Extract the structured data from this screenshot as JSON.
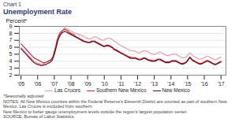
{
  "chart_data": {
    "type": "line",
    "title": "Chart 1",
    "subtitle": "Unemployment Rate",
    "ylabel": "Percent*",
    "annotations": [
      "*Seasonally adjusted",
      "NOTES: All New Mexico counties within the Federal Reserve's Eleventh District are counted as part of southern New Mexico. Las Cruces is excluded from southern",
      "New Mexico to better gauge unemployment levels outside the region's largest population center.",
      "SOURCE: Bureau of Labor Statistics."
    ],
    "xlim": [
      2004.9,
      2017.3
    ],
    "xticks": [
      {
        "value": 2005,
        "label": "'05"
      },
      {
        "value": 2006,
        "label": "'06"
      },
      {
        "value": 2007,
        "label": "'07"
      },
      {
        "value": 2008,
        "label": "'08"
      },
      {
        "value": 2009,
        "label": "'09"
      },
      {
        "value": 2010,
        "label": "'10"
      },
      {
        "value": 2011,
        "label": "'11"
      },
      {
        "value": 2012,
        "label": "'12"
      },
      {
        "value": 2013,
        "label": "'13"
      },
      {
        "value": 2014,
        "label": "'14"
      },
      {
        "value": 2015,
        "label": "'15"
      },
      {
        "value": 2016,
        "label": "'16"
      },
      {
        "value": 2017,
        "label": "'17"
      }
    ],
    "ylim": [
      2,
      9
    ],
    "yticks": [
      2,
      3,
      4,
      5,
      6,
      7,
      8,
      9
    ],
    "grid": true,
    "legend": "bottom",
    "x": [
      2005,
      2005.0774,
      2005.1548,
      2005.2323,
      2005.3097,
      2005.3871,
      2005.4645,
      2005.5419,
      2005.6194,
      2005.6968,
      2005.7742,
      2005.8516,
      2005.929,
      2006.0065,
      2006.0839,
      2006.1613,
      2006.2387,
      2006.3161,
      2006.3935,
      2006.471,
      2006.5484,
      2006.6258,
      2006.7032,
      2006.7806,
      2006.8581,
      2006.9355,
      2007.0129,
      2007.0903,
      2007.1677,
      2007.2452,
      2007.3226,
      2007.4,
      2007.4774,
      2007.5548,
      2007.6323,
      2007.7097,
      2007.7871,
      2007.8645,
      2007.9419,
      2008.0194,
      2008.0968,
      2008.1742,
      2008.2516,
      2008.329,
      2008.4065,
      2008.4839,
      2008.5613,
      2008.6387,
      2008.7161,
      2008.7935,
      2008.871,
      2008.9484,
      2009.0258,
      2009.1032,
      2009.1806,
      2009.2581,
      2009.3355,
      2009.4129,
      2009.4903,
      2009.5677,
      2009.6452,
      2009.7226,
      2009.8,
      2009.8774,
      2009.9548,
      2010.0323,
      2010.1097,
      2010.1871,
      2010.2645,
      2010.3419,
      2010.4194,
      2010.4968,
      2010.5742,
      2010.6516,
      2010.729,
      2010.8065,
      2010.8839,
      2010.9613,
      2011.0387,
      2011.1161,
      2011.1935,
      2011.271,
      2011.3484,
      2011.4258,
      2011.5032,
      2011.5806,
      2011.6581,
      2011.7355,
      2011.8129,
      2011.8903,
      2011.9677,
      2012.0452,
      2012.1226,
      2012.2,
      2012.2774,
      2012.3548,
      2012.4323,
      2012.5097,
      2012.5871,
      2012.6645,
      2012.7419,
      2012.8194,
      2012.8968,
      2012.9742,
      2013.0516,
      2013.129,
      2013.2065,
      2013.2839,
      2013.3613,
      2013.4387,
      2013.5161,
      2013.5935,
      2013.671,
      2013.7484,
      2013.8258,
      2013.9032,
      2013.9806,
      2014.0581,
      2014.1355,
      2014.2129,
      2014.2903,
      2014.3677,
      2014.4452,
      2014.5226,
      2014.6,
      2014.6774,
      2014.7548,
      2014.8323,
      2014.9097,
      2014.9871,
      2015.0645,
      2015.1419,
      2015.2194,
      2015.2968,
      2015.3742,
      2015.4516,
      2015.529,
      2015.6065,
      2015.6839,
      2015.7613,
      2015.8387,
      2015.9161,
      2015.9935,
      2016.071,
      2016.1484,
      2016.2258,
      2016.3032,
      2016.3806,
      2016.4581,
      2016.5355,
      2016.6129,
      2016.6903,
      2016.7677,
      2016.8452,
      2016.9226,
      2017
    ],
    "series": [
      {
        "name": "Las Cruces",
        "color": "#dba0aa",
        "values": [
          6.0,
          5.8,
          5.6,
          5.4,
          5.2,
          5.0,
          4.8,
          4.6,
          4.4,
          4.2,
          4.0,
          3.9,
          3.8,
          3.7,
          3.7,
          3.6,
          3.6,
          3.6,
          3.7,
          3.8,
          3.9,
          3.9,
          4.0,
          4.1,
          4.3,
          4.6,
          5.2,
          5.8,
          6.5,
          7.2,
          7.7,
          8.0,
          8.3,
          8.6,
          8.8,
          8.7,
          8.6,
          8.5,
          8.4,
          8.3,
          8.2,
          8.1,
          8.0,
          8.0,
          7.9,
          7.8,
          7.8,
          7.7,
          7.6,
          7.5,
          7.4,
          7.3,
          7.3,
          7.2,
          7.2,
          7.3,
          7.4,
          7.5,
          7.5,
          7.4,
          7.3,
          7.2,
          7.1,
          7.0,
          7.0,
          7.1,
          7.2,
          7.3,
          7.3,
          7.3,
          7.2,
          7.1,
          6.9,
          6.8,
          6.7,
          6.5,
          6.4,
          6.3,
          6.2,
          6.1,
          6.0,
          5.9,
          5.8,
          5.7,
          5.6,
          5.5,
          5.5,
          5.5,
          5.5,
          5.4,
          5.3,
          5.2,
          5.2,
          5.3,
          5.4,
          5.5,
          5.5,
          5.5,
          5.4,
          5.3,
          5.2,
          5.1,
          5.0,
          5.0,
          5.0,
          5.1,
          5.2,
          5.3,
          5.3,
          5.2,
          5.1,
          5.0,
          4.9,
          4.8,
          4.8,
          4.8,
          4.9,
          5.0,
          5.0,
          5.0,
          5.0,
          4.9,
          4.8,
          4.7,
          4.6,
          4.5,
          4.5,
          4.5,
          4.6,
          4.8,
          5.0,
          5.2,
          5.0,
          4.8,
          4.7,
          4.6,
          4.5,
          4.4,
          4.3,
          4.3,
          4.3,
          4.4,
          4.5,
          4.6,
          4.7,
          4.7,
          4.6,
          4.5,
          4.4,
          4.3,
          4.2,
          4.2,
          4.3,
          4.4,
          4.5,
          4.6
        ]
      },
      {
        "name": "Southern New Mexico",
        "color": "#b83040",
        "values": [
          6.5,
          6.3,
          6.1,
          5.9,
          5.7,
          5.5,
          5.3,
          5.1,
          4.9,
          4.7,
          4.5,
          4.4,
          4.3,
          4.2,
          4.1,
          4.0,
          3.9,
          3.8,
          3.8,
          3.8,
          3.9,
          4.0,
          4.1,
          4.2,
          4.4,
          4.8,
          5.5,
          6.2,
          7.0,
          7.6,
          8.0,
          8.2,
          8.4,
          8.5,
          8.6,
          8.5,
          8.4,
          8.2,
          8.1,
          8.0,
          7.9,
          7.8,
          7.6,
          7.5,
          7.4,
          7.3,
          7.2,
          7.1,
          7.0,
          6.9,
          6.8,
          6.8,
          6.7,
          6.7,
          6.8,
          6.9,
          6.9,
          6.9,
          6.8,
          6.7,
          6.6,
          6.5,
          6.4,
          6.3,
          6.2,
          6.2,
          6.3,
          6.3,
          6.3,
          6.2,
          6.1,
          6.0,
          5.8,
          5.7,
          5.6,
          5.5,
          5.4,
          5.3,
          5.2,
          5.1,
          5.0,
          4.9,
          4.8,
          4.7,
          4.6,
          4.6,
          4.5,
          4.5,
          4.5,
          4.5,
          4.4,
          4.3,
          4.3,
          4.3,
          4.4,
          4.5,
          4.5,
          4.4,
          4.3,
          4.2,
          4.2,
          4.1,
          4.1,
          4.1,
          4.1,
          4.2,
          4.3,
          4.3,
          4.3,
          4.2,
          4.1,
          4.0,
          3.9,
          3.9,
          3.9,
          3.9,
          4.0,
          4.1,
          4.1,
          4.1,
          4.1,
          4.0,
          3.9,
          3.8,
          3.7,
          3.7,
          3.7,
          3.8,
          3.9,
          4.1,
          4.4,
          4.6,
          4.4,
          4.2,
          4.1,
          4.0,
          3.9,
          3.8,
          3.7,
          3.7,
          3.7,
          3.8,
          3.9,
          4.0,
          4.1,
          4.1,
          4.0,
          3.9,
          3.8,
          3.7,
          3.6,
          3.6,
          3.7,
          3.8,
          3.9,
          4.0
        ]
      },
      {
        "name": "New Mexico",
        "color": "#6b0a18",
        "values": [
          5.8,
          5.6,
          5.4,
          5.2,
          5.0,
          4.8,
          4.6,
          4.4,
          4.2,
          4.0,
          3.8,
          3.7,
          3.6,
          3.5,
          3.5,
          3.4,
          3.4,
          3.4,
          3.5,
          3.5,
          3.6,
          3.7,
          3.8,
          3.9,
          4.1,
          4.5,
          5.1,
          5.8,
          6.6,
          7.2,
          7.6,
          7.9,
          8.1,
          8.2,
          8.3,
          8.2,
          8.1,
          8.0,
          7.9,
          7.8,
          7.7,
          7.6,
          7.5,
          7.4,
          7.3,
          7.2,
          7.1,
          7.0,
          6.9,
          6.8,
          6.8,
          6.7,
          6.7,
          6.7,
          6.7,
          6.8,
          6.8,
          6.8,
          6.7,
          6.6,
          6.5,
          6.4,
          6.3,
          6.2,
          6.1,
          6.1,
          6.2,
          6.2,
          6.2,
          6.1,
          6.0,
          5.9,
          5.7,
          5.6,
          5.5,
          5.4,
          5.3,
          5.2,
          5.1,
          5.0,
          4.9,
          4.8,
          4.7,
          4.6,
          4.5,
          4.4,
          4.4,
          4.4,
          4.4,
          4.4,
          4.3,
          4.2,
          4.2,
          4.2,
          4.3,
          4.4,
          4.4,
          4.3,
          4.2,
          4.1,
          4.1,
          4.0,
          4.0,
          4.0,
          4.0,
          4.1,
          4.2,
          4.2,
          4.2,
          4.1,
          4.0,
          3.9,
          3.8,
          3.8,
          3.8,
          3.8,
          3.9,
          4.0,
          4.0,
          4.0,
          4.0,
          3.9,
          3.8,
          3.7,
          3.6,
          3.6,
          3.6,
          3.7,
          3.8,
          4.0,
          4.3,
          4.5,
          4.3,
          4.1,
          4.0,
          3.9,
          3.8,
          3.7,
          3.6,
          3.6,
          3.6,
          3.7,
          3.8,
          3.9,
          4.0,
          4.0,
          3.9,
          3.8,
          3.7,
          3.6,
          3.5,
          3.5,
          3.6,
          3.7,
          3.8,
          3.9
        ]
      }
    ]
  }
}
